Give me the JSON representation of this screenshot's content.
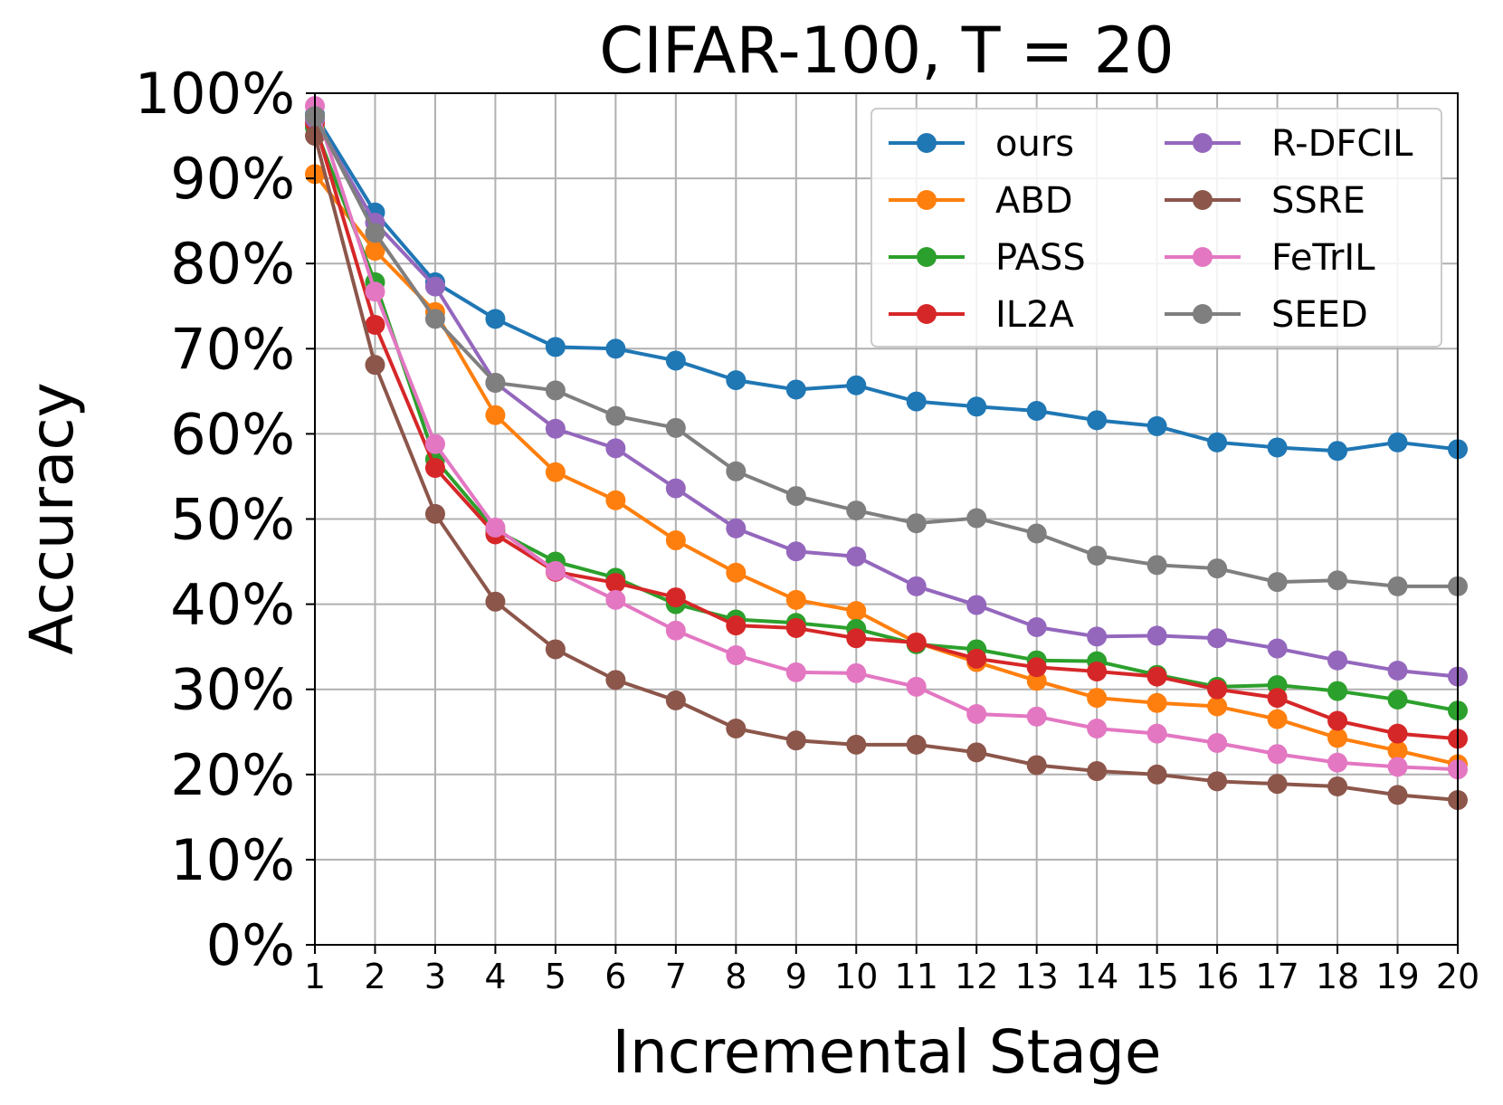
{
  "chart_data": {
    "type": "line",
    "title": "CIFAR-100, T = 20",
    "xlabel": "Incremental Stage",
    "ylabel": "Accuracy",
    "x": [
      1,
      2,
      3,
      4,
      5,
      6,
      7,
      8,
      9,
      10,
      11,
      12,
      13,
      14,
      15,
      16,
      17,
      18,
      19,
      20
    ],
    "xtick_labels": [
      "1",
      "2",
      "3",
      "4",
      "5",
      "6",
      "7",
      "8",
      "9",
      "10",
      "11",
      "12",
      "13",
      "14",
      "15",
      "16",
      "17",
      "18",
      "19",
      "20"
    ],
    "xlim": [
      1,
      20
    ],
    "ylim": [
      0,
      100
    ],
    "yticks": [
      0,
      10,
      20,
      30,
      40,
      50,
      60,
      70,
      80,
      90,
      100
    ],
    "ytick_labels": [
      "0%",
      "10%",
      "20%",
      "30%",
      "40%",
      "50%",
      "60%",
      "70%",
      "80%",
      "90%",
      "100%"
    ],
    "grid": true,
    "legend_position": "top-right",
    "legend_columns": 2,
    "series": [
      {
        "name": "ours",
        "color": "#1f77b4",
        "values": [
          97.5,
          86.0,
          77.8,
          73.5,
          70.2,
          70.0,
          68.6,
          66.3,
          65.2,
          65.7,
          63.8,
          63.2,
          62.7,
          61.6,
          60.9,
          59.0,
          58.4,
          58.0,
          59.0,
          58.2
        ]
      },
      {
        "name": "ABD",
        "color": "#ff7f0e",
        "values": [
          90.5,
          81.5,
          74.3,
          62.2,
          55.5,
          52.2,
          47.5,
          43.7,
          40.5,
          39.2,
          35.5,
          33.2,
          31.0,
          29.0,
          28.4,
          28.0,
          26.5,
          24.3,
          22.8,
          21.2
        ]
      },
      {
        "name": "PASS",
        "color": "#2ca02c",
        "values": [
          96.0,
          77.8,
          57.0,
          48.7,
          45.0,
          43.1,
          40.0,
          38.2,
          37.8,
          37.1,
          35.3,
          34.7,
          33.4,
          33.3,
          31.7,
          30.3,
          30.5,
          29.8,
          28.8,
          27.5
        ]
      },
      {
        "name": "IL2A",
        "color": "#d62728",
        "values": [
          96.5,
          72.8,
          56.0,
          48.2,
          43.8,
          42.5,
          40.8,
          37.5,
          37.2,
          36.0,
          35.5,
          33.6,
          32.6,
          32.1,
          31.5,
          30.0,
          29.0,
          26.3,
          24.8,
          24.2
        ]
      },
      {
        "name": "R-DFCIL",
        "color": "#9467bd",
        "values": [
          97.0,
          84.8,
          77.3,
          66.0,
          60.6,
          58.3,
          53.6,
          48.9,
          46.2,
          45.6,
          42.1,
          39.9,
          37.3,
          36.2,
          36.3,
          36.0,
          34.8,
          33.4,
          32.2,
          31.5
        ]
      },
      {
        "name": "SSRE",
        "color": "#8c564b",
        "values": [
          95.0,
          68.1,
          50.6,
          40.3,
          34.7,
          31.1,
          28.7,
          25.4,
          24.0,
          23.5,
          23.5,
          22.6,
          21.1,
          20.4,
          20.0,
          19.2,
          18.9,
          18.6,
          17.6,
          17.0
        ]
      },
      {
        "name": "FeTrIL",
        "color": "#e377c2",
        "values": [
          98.5,
          76.7,
          58.8,
          49.0,
          43.9,
          40.5,
          36.9,
          34.0,
          32.0,
          31.9,
          30.3,
          27.1,
          26.8,
          25.4,
          24.8,
          23.7,
          22.4,
          21.4,
          20.9,
          20.6
        ]
      },
      {
        "name": "SEED",
        "color": "#7f7f7f",
        "values": [
          97.3,
          83.6,
          73.5,
          66.0,
          65.1,
          62.1,
          60.7,
          55.6,
          52.7,
          51.0,
          49.5,
          50.1,
          48.3,
          45.7,
          44.6,
          44.2,
          42.6,
          42.8,
          42.1,
          42.1
        ]
      }
    ]
  }
}
